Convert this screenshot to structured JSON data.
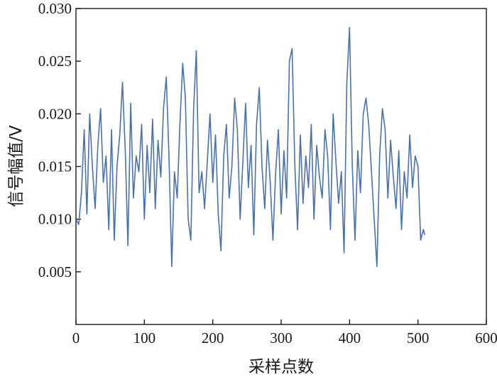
{
  "chart_data": {
    "type": "line",
    "title": "",
    "xlabel": "采样点数",
    "ylabel": "信号幅值/V",
    "xlim": [
      0,
      600
    ],
    "ylim": [
      0,
      0.03
    ],
    "x_ticks": [
      0,
      100,
      200,
      300,
      400,
      500,
      600
    ],
    "y_ticks": [
      0.005,
      0.01,
      0.015,
      0.02,
      0.025,
      0.03
    ],
    "x_tick_labels": [
      "0",
      "100",
      "200",
      "300",
      "400",
      "500",
      "600"
    ],
    "y_tick_labels": [
      "0.005",
      "0.010",
      "0.015",
      "0.020",
      "0.025",
      "0.030"
    ],
    "grid": false,
    "line_color": "#4a72a8",
    "series": [
      {
        "x": [
          0,
          4,
          8,
          12,
          16,
          20,
          24,
          28,
          32,
          36,
          40,
          44,
          48,
          52,
          56,
          60,
          64,
          68,
          72,
          76,
          80,
          84,
          88,
          92,
          96,
          100,
          104,
          108,
          112,
          116,
          120,
          124,
          128,
          132,
          136,
          140,
          144,
          148,
          152,
          156,
          160,
          164,
          168,
          172,
          176,
          180,
          184,
          188,
          192,
          196,
          200,
          204,
          208,
          212,
          216,
          220,
          224,
          228,
          232,
          236,
          240,
          244,
          248,
          252,
          256,
          260,
          264,
          268,
          272,
          276,
          280,
          284,
          288,
          292,
          296,
          300,
          304,
          308,
          312,
          316,
          320,
          324,
          328,
          332,
          336,
          340,
          344,
          348,
          352,
          356,
          360,
          364,
          368,
          372,
          376,
          380,
          384,
          388,
          392,
          396,
          400,
          404,
          408,
          412,
          416,
          420,
          424,
          428,
          432,
          436,
          440,
          444,
          448,
          452,
          456,
          460,
          464,
          468,
          472,
          476,
          480,
          484,
          488,
          492,
          496,
          500,
          504,
          508,
          510
        ],
        "y": [
          0.01,
          0.0095,
          0.0125,
          0.0185,
          0.0105,
          0.02,
          0.015,
          0.011,
          0.017,
          0.0205,
          0.0135,
          0.016,
          0.009,
          0.0185,
          0.008,
          0.015,
          0.018,
          0.023,
          0.0165,
          0.0075,
          0.021,
          0.012,
          0.016,
          0.0145,
          0.019,
          0.01,
          0.017,
          0.0125,
          0.0195,
          0.011,
          0.0175,
          0.014,
          0.0205,
          0.0235,
          0.016,
          0.0055,
          0.0145,
          0.012,
          0.019,
          0.0248,
          0.0215,
          0.01,
          0.008,
          0.0205,
          0.026,
          0.0125,
          0.0145,
          0.011,
          0.0155,
          0.02,
          0.0135,
          0.018,
          0.0105,
          0.007,
          0.016,
          0.019,
          0.012,
          0.015,
          0.0215,
          0.0185,
          0.01,
          0.0155,
          0.021,
          0.013,
          0.017,
          0.0085,
          0.019,
          0.0225,
          0.015,
          0.011,
          0.0175,
          0.0135,
          0.008,
          0.0145,
          0.0185,
          0.0105,
          0.0165,
          0.012,
          0.025,
          0.0262,
          0.015,
          0.009,
          0.018,
          0.0115,
          0.016,
          0.013,
          0.019,
          0.01,
          0.017,
          0.014,
          0.012,
          0.0185,
          0.016,
          0.009,
          0.02,
          0.0155,
          0.0115,
          0.0145,
          0.0068,
          0.023,
          0.0282,
          0.015,
          0.008,
          0.0165,
          0.0125,
          0.02,
          0.0215,
          0.019,
          0.0145,
          0.01,
          0.0055,
          0.016,
          0.0205,
          0.0185,
          0.012,
          0.0175,
          0.014,
          0.011,
          0.0165,
          0.009,
          0.0145,
          0.012,
          0.018,
          0.013,
          0.016,
          0.015,
          0.008,
          0.009,
          0.0085
        ]
      }
    ]
  }
}
